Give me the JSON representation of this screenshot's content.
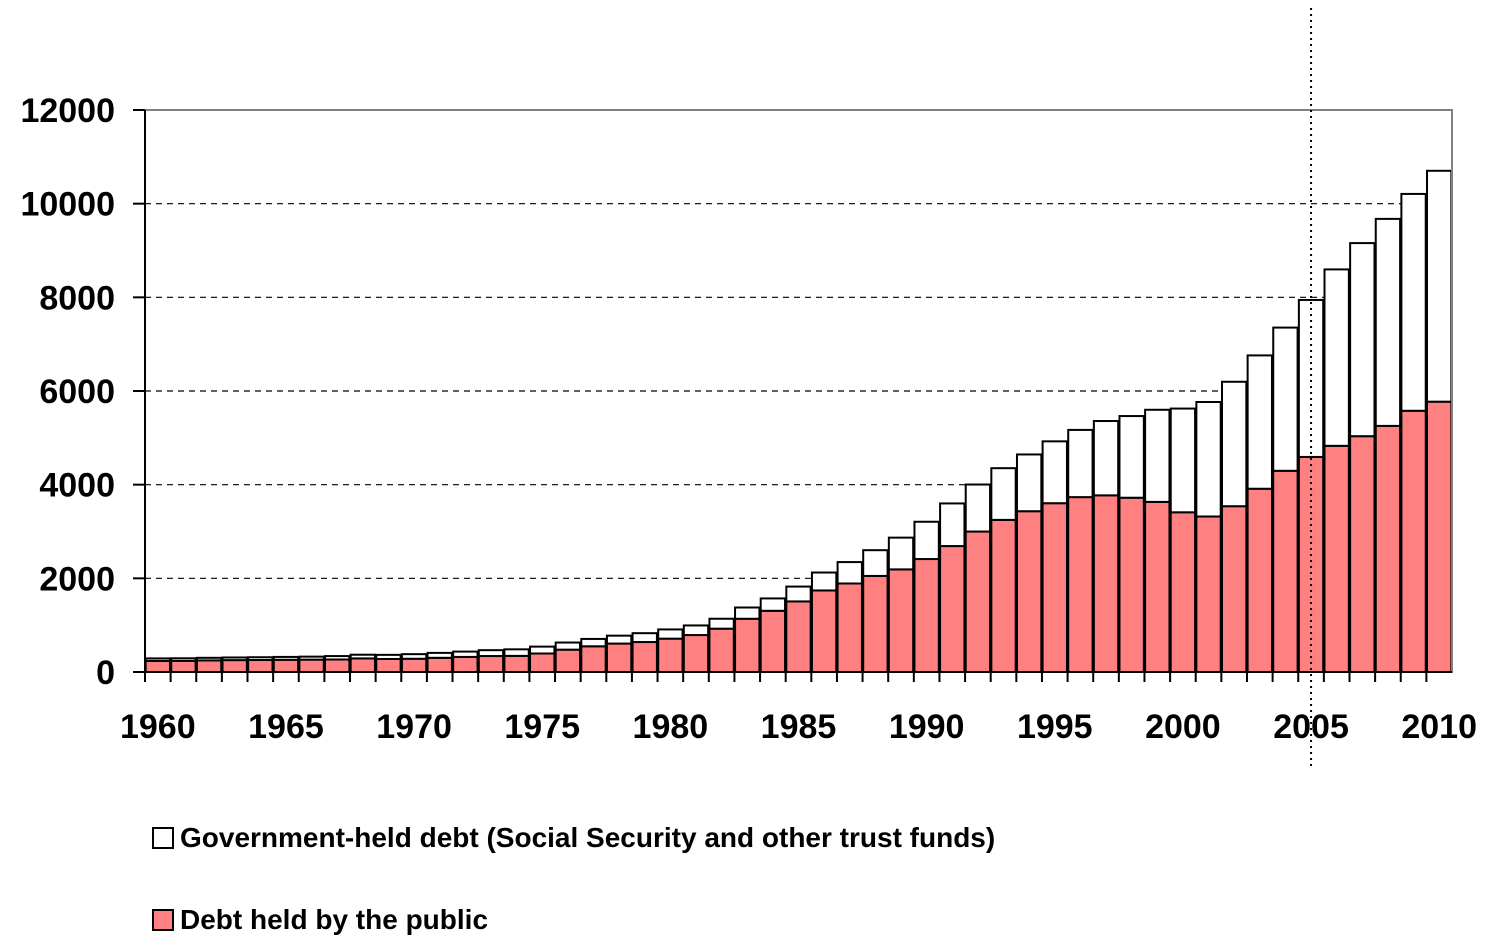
{
  "chart_data": {
    "type": "bar",
    "stacked": true,
    "x": [
      1960,
      1961,
      1962,
      1963,
      1964,
      1965,
      1966,
      1967,
      1968,
      1969,
      1970,
      1971,
      1972,
      1973,
      1974,
      1975,
      1976,
      1977,
      1978,
      1979,
      1980,
      1981,
      1982,
      1983,
      1984,
      1985,
      1986,
      1987,
      1988,
      1989,
      1990,
      1991,
      1992,
      1993,
      1994,
      1995,
      1996,
      1997,
      1998,
      1999,
      2000,
      2001,
      2002,
      2003,
      2004,
      2005,
      2006,
      2007,
      2008,
      2009,
      2010
    ],
    "x_tick_labels": [
      "1960",
      "1965",
      "1970",
      "1975",
      "1980",
      "1985",
      "1990",
      "1995",
      "2000",
      "2005",
      "2010"
    ],
    "ylim": [
      0,
      12000
    ],
    "y_tick_labels": [
      "0",
      "2000",
      "4000",
      "6000",
      "8000",
      "10000",
      "12000"
    ],
    "grid": "horizontal dashed",
    "vertical_marker_x": 2005,
    "series": [
      {
        "name": "Debt held by the public",
        "color": "#ff8080",
        "values": [
          237,
          238,
          248,
          254,
          256,
          261,
          264,
          267,
          290,
          278,
          283,
          303,
          322,
          341,
          344,
          395,
          477,
          549,
          607,
          640,
          712,
          789,
          925,
          1137,
          1307,
          1507,
          1741,
          1890,
          2051,
          2191,
          2412,
          2689,
          2999,
          3248,
          3433,
          3604,
          3734,
          3772,
          3721,
          3632,
          3410,
          3320,
          3540,
          3913,
          4296,
          4592,
          4829,
          5035,
          5255,
          5578,
          5772
        ]
      },
      {
        "name": "Government-held debt (Social Security and other trust funds)",
        "color": "#ffffff",
        "values": [
          53,
          55,
          55,
          56,
          59,
          61,
          64,
          73,
          79,
          88,
          98,
          105,
          114,
          125,
          140,
          147,
          152,
          157,
          169,
          189,
          197,
          205,
          212,
          240,
          264,
          317,
          383,
          457,
          550,
          678,
          796,
          910,
          1004,
          1104,
          1212,
          1321,
          1435,
          1587,
          1744,
          1967,
          2215,
          2445,
          2657,
          2847,
          3058,
          3352,
          3767,
          4123,
          4420,
          4630,
          4930
        ]
      }
    ],
    "legend": [
      {
        "label": "Government-held debt (Social Security and other trust funds)",
        "color": "#ffffff"
      },
      {
        "label": "Debt held by the public",
        "color": "#ff8080"
      }
    ]
  }
}
